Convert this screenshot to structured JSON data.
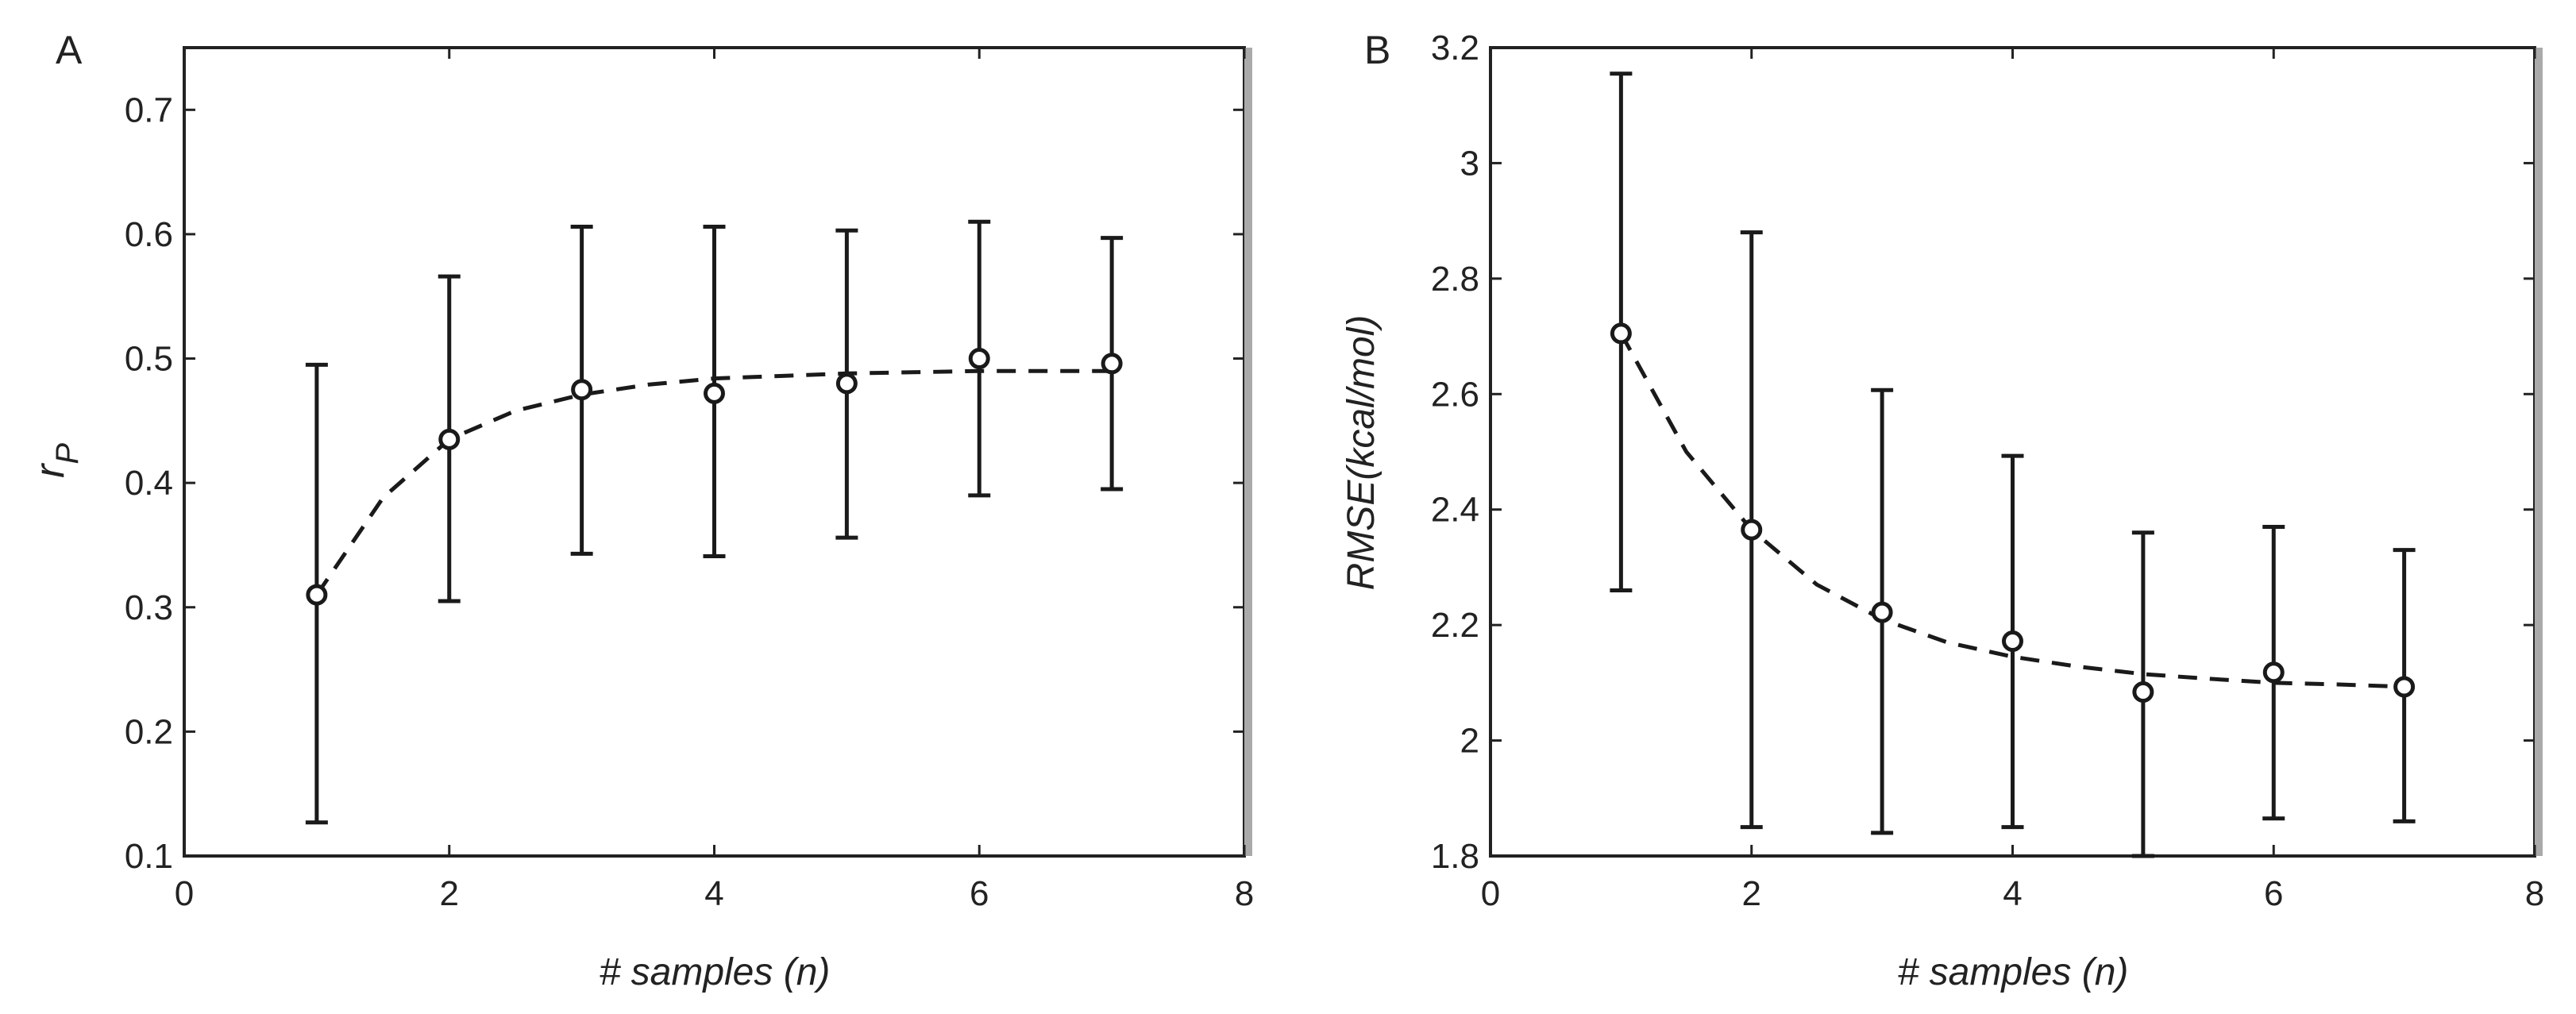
{
  "chart_data": [
    {
      "panel_label": "A",
      "type": "line",
      "xlabel": "# samples (n)",
      "ylabel_main": "r",
      "ylabel_sub": "P",
      "xlim": [
        0,
        8
      ],
      "ylim": [
        0.1,
        0.75
      ],
      "xticks": [
        0,
        2,
        4,
        6,
        8
      ],
      "xtick_labels": [
        "0",
        "2",
        "4",
        "6",
        "8"
      ],
      "yticks": [
        0.1,
        0.2,
        0.3,
        0.4,
        0.5,
        0.6,
        0.7
      ],
      "ytick_labels": [
        "0.1",
        "0.2",
        "0.3",
        "0.4",
        "0.5",
        "0.6",
        "0.7"
      ],
      "grid": false,
      "series": [
        {
          "style": "circle markers with error bars",
          "x": [
            1,
            2,
            3,
            4,
            5,
            6,
            7
          ],
          "y": [
            0.31,
            0.435,
            0.475,
            0.472,
            0.48,
            0.5,
            0.496
          ],
          "err_low": [
            0.127,
            0.305,
            0.343,
            0.341,
            0.356,
            0.39,
            0.395
          ],
          "err_high": [
            0.495,
            0.566,
            0.606,
            0.606,
            0.603,
            0.61,
            0.597
          ]
        },
        {
          "style": "dashed fit",
          "x": [
            1,
            1.5,
            2,
            2.5,
            3,
            3.5,
            4,
            4.5,
            5,
            5.5,
            6,
            6.5,
            7
          ],
          "y": [
            0.31,
            0.388,
            0.435,
            0.458,
            0.471,
            0.479,
            0.484,
            0.486,
            0.488,
            0.489,
            0.49,
            0.49,
            0.49
          ]
        }
      ],
      "color": "#1a1a1a"
    },
    {
      "panel_label": "B",
      "type": "line",
      "xlabel": "# samples (n)",
      "ylabel": "RMSE(kcal/mol)",
      "xlim": [
        0,
        8
      ],
      "ylim": [
        1.8,
        3.2
      ],
      "xticks": [
        0,
        2,
        4,
        6,
        8
      ],
      "xtick_labels": [
        "0",
        "2",
        "4",
        "6",
        "8"
      ],
      "yticks": [
        1.8,
        2,
        2.2,
        2.4,
        2.6,
        2.8,
        3,
        3.2
      ],
      "ytick_labels": [
        "1.8",
        "2",
        "2.2",
        "2.4",
        "2.6",
        "2.8",
        "3",
        "3.2"
      ],
      "grid": false,
      "series": [
        {
          "style": "circle markers with error bars",
          "x": [
            1,
            2,
            3,
            4,
            5,
            6,
            7
          ],
          "y": [
            2.705,
            2.365,
            2.222,
            2.172,
            2.084,
            2.118,
            2.093
          ],
          "err_low": [
            2.26,
            1.85,
            1.84,
            1.85,
            1.8,
            1.865,
            1.86
          ],
          "err_high": [
            3.155,
            2.88,
            2.607,
            2.493,
            2.36,
            2.37,
            2.33
          ]
        },
        {
          "style": "dashed fit",
          "x": [
            1,
            1.5,
            2,
            2.5,
            3,
            3.5,
            4,
            4.5,
            5,
            5.5,
            6,
            6.5,
            7
          ],
          "y": [
            2.705,
            2.5,
            2.365,
            2.27,
            2.21,
            2.17,
            2.145,
            2.128,
            2.115,
            2.107,
            2.1,
            2.097,
            2.093
          ]
        }
      ],
      "color": "#1a1a1a"
    }
  ]
}
